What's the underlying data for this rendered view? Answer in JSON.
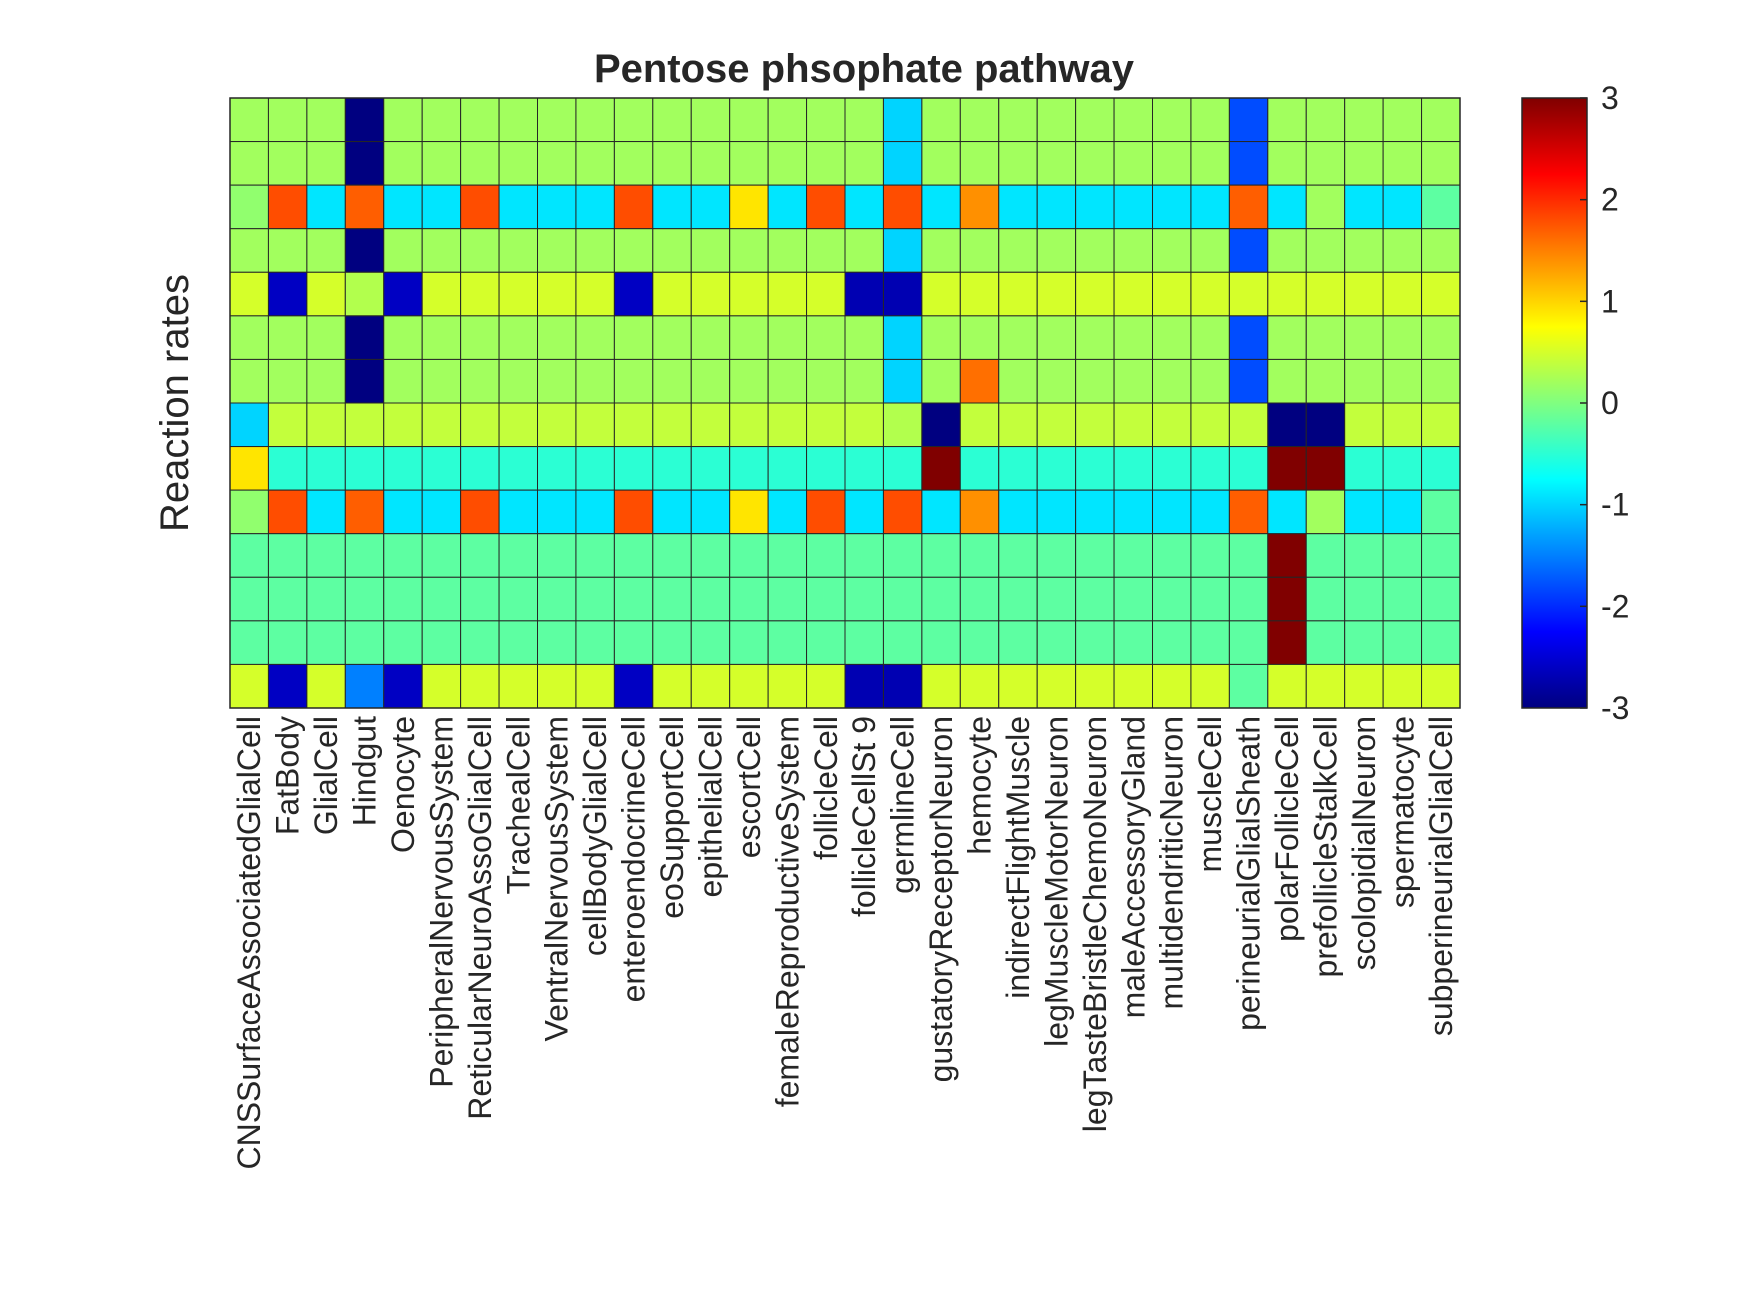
{
  "chart_data": {
    "type": "heatmap",
    "title": "Pentose phsophate pathway",
    "ylabel": "Reaction rates",
    "xlabel": "",
    "colormap": "jet",
    "clim": [
      -3,
      3
    ],
    "colorbar_ticks": [
      3,
      2,
      1,
      0,
      -1,
      -2,
      -3
    ],
    "categories": [
      "CNSSurfaceAssociatedGlialCell",
      "FatBody",
      "GlialCell",
      "Hindgut",
      "Oenocyte",
      "PeripheralNervousSystem",
      "ReticularNeuroAssoGlialCell",
      "TrachealCell",
      "VentralNervousSystem",
      "cellBodyGlialCell",
      "enteroendocrineCell",
      "eoSupportCell",
      "epithelialCell",
      "escortCell",
      "femaleReproductiveSystem",
      "follicleCell",
      "follicleCellSt 9",
      "germlineCell",
      "gustatoryReceptorNeuron",
      "hemocyte",
      "indirectFlightMuscle",
      "legMuscleMotorNeuron",
      "legTasteBristleChemoNeuron",
      "maleAccessoryGland",
      "multidendriticNeuron",
      "muscleCell",
      "perineurialGlialSheath",
      "polarFollicleCell",
      "prefollicleStalkCell",
      "scolopidialNeuron",
      "spermatocyte",
      "subperineurialGlialCell"
    ],
    "values": [
      [
        0.2,
        0.2,
        0.2,
        -3,
        0.2,
        0.2,
        0.2,
        0.2,
        0.2,
        0.2,
        0.2,
        0.2,
        0.2,
        0.2,
        0.2,
        0.2,
        0.2,
        -1,
        0.2,
        0.2,
        0.2,
        0.2,
        0.2,
        0.2,
        0.2,
        0.2,
        -1.8,
        0.2,
        0.2,
        0.2,
        0.2,
        0.2
      ],
      [
        0.2,
        0.2,
        0.2,
        -3,
        0.2,
        0.2,
        0.2,
        0.2,
        0.2,
        0.2,
        0.2,
        0.2,
        0.2,
        0.2,
        0.2,
        0.2,
        0.2,
        -1,
        0.2,
        0.2,
        0.2,
        0.2,
        0.2,
        0.2,
        0.2,
        0.2,
        -1.8,
        0.2,
        0.2,
        0.2,
        0.2,
        0.2
      ],
      [
        0.1,
        1.8,
        -0.9,
        1.7,
        -0.9,
        -0.9,
        1.8,
        -0.9,
        -0.9,
        -0.9,
        1.8,
        -0.9,
        -0.9,
        0.9,
        -0.9,
        1.8,
        -0.9,
        1.8,
        -0.9,
        1.4,
        -0.9,
        -0.9,
        -0.9,
        -0.9,
        -0.9,
        -0.9,
        1.7,
        -0.9,
        0.2,
        -0.9,
        -0.9,
        -0.2
      ],
      [
        0.2,
        0.2,
        0.2,
        -3,
        0.2,
        0.2,
        0.2,
        0.2,
        0.2,
        0.2,
        0.2,
        0.2,
        0.2,
        0.2,
        0.2,
        0.2,
        0.2,
        -1,
        0.2,
        0.2,
        0.2,
        0.2,
        0.2,
        0.2,
        0.2,
        0.2,
        -1.8,
        0.2,
        0.2,
        0.2,
        0.2,
        0.2
      ],
      [
        0.5,
        -2.6,
        0.5,
        0.3,
        -2.6,
        0.5,
        0.5,
        0.5,
        0.5,
        0.5,
        -2.6,
        0.5,
        0.5,
        0.5,
        0.5,
        0.5,
        -2.7,
        -2.7,
        0.5,
        0.5,
        0.5,
        0.5,
        0.5,
        0.5,
        0.5,
        0.5,
        0.5,
        0.5,
        0.5,
        0.5,
        0.5,
        0.5
      ],
      [
        0.2,
        0.2,
        0.2,
        -3,
        0.2,
        0.2,
        0.2,
        0.2,
        0.2,
        0.2,
        0.2,
        0.2,
        0.2,
        0.2,
        0.2,
        0.2,
        0.2,
        -1,
        0.2,
        0.2,
        0.2,
        0.2,
        0.2,
        0.2,
        0.2,
        0.2,
        -1.8,
        0.2,
        0.2,
        0.2,
        0.2,
        0.2
      ],
      [
        0.2,
        0.2,
        0.2,
        -3,
        0.2,
        0.2,
        0.2,
        0.2,
        0.2,
        0.2,
        0.2,
        0.2,
        0.2,
        0.2,
        0.2,
        0.2,
        0.2,
        -1,
        0.2,
        1.6,
        0.2,
        0.2,
        0.2,
        0.2,
        0.2,
        0.2,
        -1.8,
        0.2,
        0.2,
        0.2,
        0.2,
        0.2
      ],
      [
        -1,
        0.4,
        0.4,
        0.4,
        0.4,
        0.4,
        0.4,
        0.4,
        0.4,
        0.4,
        0.4,
        0.4,
        0.4,
        0.4,
        0.4,
        0.4,
        0.4,
        0.3,
        -3,
        0.4,
        0.4,
        0.4,
        0.4,
        0.4,
        0.4,
        0.4,
        0.4,
        -3,
        -3,
        0.4,
        0.4,
        0.4
      ],
      [
        0.9,
        -0.5,
        -0.5,
        -0.5,
        -0.5,
        -0.5,
        -0.5,
        -0.5,
        -0.5,
        -0.5,
        -0.5,
        -0.5,
        -0.5,
        -0.5,
        -0.5,
        -0.5,
        -0.5,
        -0.5,
        3,
        -0.5,
        -0.5,
        -0.5,
        -0.5,
        -0.5,
        -0.5,
        -0.5,
        -0.5,
        3,
        3,
        -0.5,
        -0.5,
        -0.5
      ],
      [
        0.1,
        1.8,
        -0.9,
        1.7,
        -0.9,
        -0.9,
        1.8,
        -0.9,
        -0.9,
        -0.9,
        1.8,
        -0.9,
        -0.9,
        0.9,
        -0.9,
        1.8,
        -0.9,
        1.8,
        -0.9,
        1.4,
        -0.9,
        -0.9,
        -0.9,
        -0.9,
        -0.9,
        -0.9,
        1.7,
        -0.9,
        0.2,
        -0.9,
        -0.9,
        -0.2
      ],
      [
        -0.2,
        -0.2,
        -0.2,
        -0.2,
        -0.2,
        -0.2,
        -0.2,
        -0.2,
        -0.2,
        -0.2,
        -0.2,
        -0.2,
        -0.2,
        -0.2,
        -0.2,
        -0.2,
        -0.2,
        -0.2,
        -0.2,
        -0.2,
        -0.2,
        -0.2,
        -0.2,
        -0.2,
        -0.2,
        -0.2,
        -0.2,
        3,
        -0.2,
        -0.2,
        -0.2,
        -0.2
      ],
      [
        -0.2,
        -0.2,
        -0.2,
        -0.2,
        -0.2,
        -0.2,
        -0.2,
        -0.2,
        -0.2,
        -0.2,
        -0.2,
        -0.2,
        -0.2,
        -0.2,
        -0.2,
        -0.2,
        -0.2,
        -0.2,
        -0.2,
        -0.2,
        -0.2,
        -0.2,
        -0.2,
        -0.2,
        -0.2,
        -0.2,
        -0.2,
        3,
        -0.2,
        -0.2,
        -0.2,
        -0.2
      ],
      [
        -0.2,
        -0.2,
        -0.2,
        -0.2,
        -0.2,
        -0.2,
        -0.2,
        -0.2,
        -0.2,
        -0.2,
        -0.2,
        -0.2,
        -0.2,
        -0.2,
        -0.2,
        -0.2,
        -0.2,
        -0.2,
        -0.2,
        -0.2,
        -0.2,
        -0.2,
        -0.2,
        -0.2,
        -0.2,
        -0.2,
        -0.2,
        3,
        -0.2,
        -0.2,
        -0.2,
        -0.2
      ],
      [
        0.5,
        -2.6,
        0.5,
        -1.5,
        -2.6,
        0.5,
        0.5,
        0.5,
        0.5,
        0.5,
        -2.6,
        0.5,
        0.5,
        0.5,
        0.5,
        0.5,
        -2.7,
        -2.7,
        0.5,
        0.5,
        0.5,
        0.5,
        0.5,
        0.5,
        0.5,
        0.5,
        -0.2,
        0.5,
        0.5,
        0.5,
        0.5,
        0.5
      ]
    ]
  }
}
